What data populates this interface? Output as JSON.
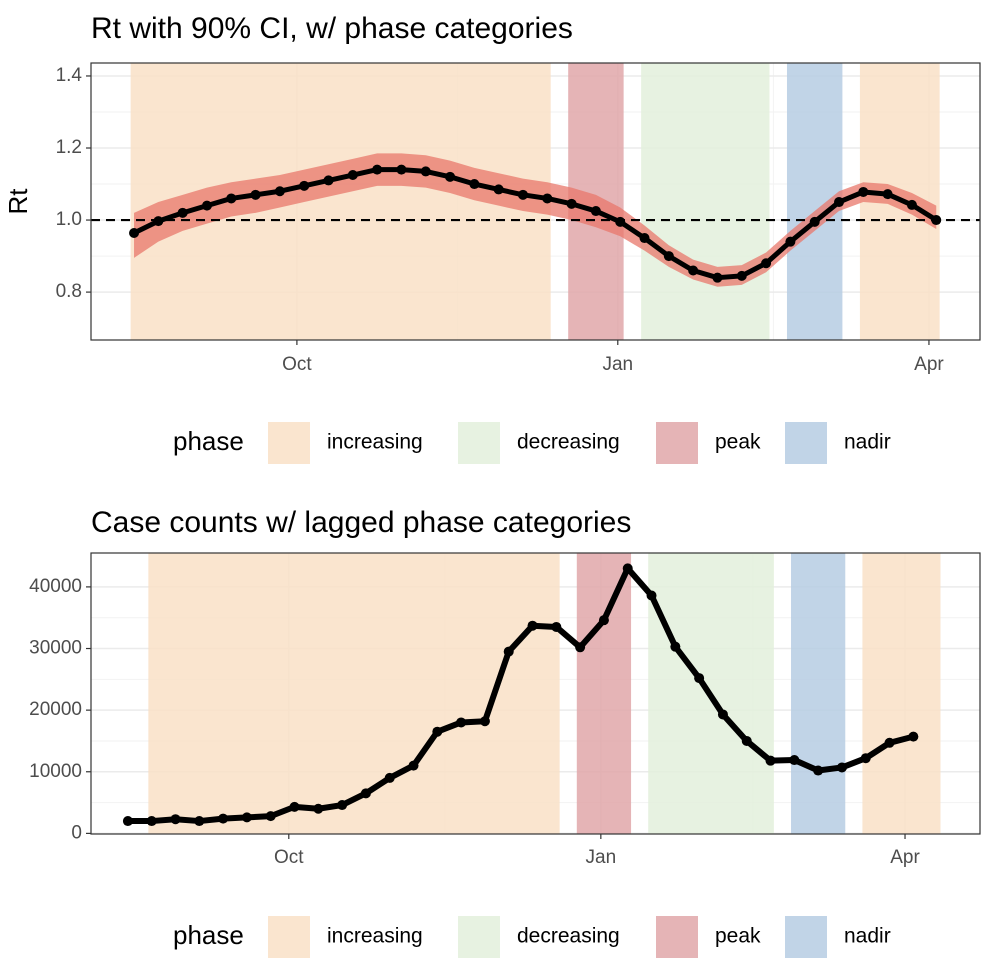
{
  "chart_data": [
    {
      "type": "line",
      "title": "Rt with 90% CI, w/ phase categories",
      "y_label": "Rt",
      "x": [
        0,
        1,
        2,
        3,
        4,
        5,
        6,
        7,
        8,
        9,
        10,
        11,
        12,
        13,
        14,
        15,
        16,
        17,
        18,
        19,
        20,
        21,
        22,
        23,
        24,
        25,
        26,
        27,
        28,
        29,
        30,
        31,
        32,
        33
      ],
      "values": [
        0.964,
        0.997,
        1.02,
        1.04,
        1.06,
        1.07,
        1.08,
        1.095,
        1.11,
        1.125,
        1.14,
        1.14,
        1.135,
        1.12,
        1.1,
        1.085,
        1.07,
        1.06,
        1.045,
        1.025,
        0.995,
        0.95,
        0.9,
        0.86,
        0.84,
        0.845,
        0.88,
        0.94,
        0.995,
        1.05,
        1.078,
        1.072,
        1.042,
        1.0
      ],
      "ci_lower": [
        0.895,
        0.94,
        0.97,
        0.99,
        1.01,
        1.02,
        1.035,
        1.05,
        1.065,
        1.08,
        1.095,
        1.095,
        1.09,
        1.075,
        1.055,
        1.04,
        1.025,
        1.015,
        1.0,
        0.98,
        0.955,
        0.915,
        0.87,
        0.835,
        0.815,
        0.82,
        0.855,
        0.915,
        0.97,
        1.025,
        1.05,
        1.045,
        1.015,
        0.975
      ],
      "ci_upper": [
        1.02,
        1.05,
        1.07,
        1.09,
        1.105,
        1.115,
        1.125,
        1.14,
        1.155,
        1.17,
        1.185,
        1.185,
        1.18,
        1.165,
        1.145,
        1.13,
        1.115,
        1.105,
        1.09,
        1.07,
        1.035,
        0.985,
        0.93,
        0.89,
        0.87,
        0.875,
        0.91,
        0.97,
        1.025,
        1.08,
        1.105,
        1.1,
        1.075,
        1.04
      ],
      "color": "#000000",
      "ci_color": "#e8776b",
      "hline": 1,
      "phases": [
        {
          "start": 0,
          "end": 17,
          "color": "#f9e1c7"
        },
        {
          "start": 18,
          "end": 20,
          "color": "#e0a7a9"
        },
        {
          "start": 21,
          "end": 26,
          "color": "#e3f0dc"
        },
        {
          "start": 27,
          "end": 29,
          "color": "#b6cde3"
        },
        {
          "start": 30,
          "end": 33,
          "color": "#f9e1c7"
        }
      ],
      "legend": {
        "title": "phase",
        "items": [
          {
            "label": "increasing",
            "color": "#f9e1c7"
          },
          {
            "label": "decreasing",
            "color": "#e3f0dc"
          },
          {
            "label": "peak",
            "color": "#e0a7a9"
          },
          {
            "label": "nadir",
            "color": "#b6cde3"
          }
        ]
      },
      "xlim": [
        -1.77,
        34.8
      ],
      "xticks": [
        {
          "value": 6.7,
          "label": "Oct"
        },
        {
          "value": 19.9,
          "label": "Jan"
        },
        {
          "value": 32.7,
          "label": "Apr"
        }
      ],
      "ylim": [
        0.667,
        1.436
      ],
      "yticks": [
        0.8,
        {
          "value": 1,
          "label": "1.0"
        },
        1.2,
        1.4
      ],
      "grid": true
    },
    {
      "type": "line",
      "title": "Case counts w/ lagged phase categories",
      "x": [
        0,
        1,
        2,
        3,
        4,
        5,
        6,
        7,
        8,
        9,
        10,
        11,
        12,
        13,
        14,
        15,
        16,
        17,
        18,
        19,
        20,
        21,
        22,
        23,
        24,
        25,
        26,
        27,
        28,
        29,
        30,
        31,
        32,
        33
      ],
      "values": [
        2000,
        2000,
        2300,
        2000,
        2400,
        2600,
        2800,
        4300,
        4000,
        4600,
        6500,
        9000,
        11000,
        16500,
        18000,
        18200,
        29500,
        33700,
        33500,
        30200,
        34600,
        43000,
        38600,
        30300,
        25200,
        19300,
        15000,
        11800,
        11900,
        10200,
        10700,
        12200,
        14700,
        15700
      ],
      "color": "#000000",
      "phases": [
        {
          "start": 1,
          "end": 18,
          "color": "#f9e1c7"
        },
        {
          "start": 19,
          "end": 21,
          "color": "#e0a7a9"
        },
        {
          "start": 22,
          "end": 27,
          "color": "#e3f0dc"
        },
        {
          "start": 28,
          "end": 30,
          "color": "#b6cde3"
        },
        {
          "start": 31,
          "end": 34,
          "color": "#f9e1c7"
        }
      ],
      "legend": {
        "title": "phase",
        "items": [
          {
            "label": "increasing",
            "color": "#f9e1c7"
          },
          {
            "label": "decreasing",
            "color": "#e3f0dc"
          },
          {
            "label": "peak",
            "color": "#e0a7a9"
          },
          {
            "label": "nadir",
            "color": "#b6cde3"
          }
        ]
      },
      "xlim": [
        -1.55,
        35.8
      ],
      "xticks": [
        {
          "value": 6.76,
          "label": "Oct"
        },
        {
          "value": 19.87,
          "label": "Jan"
        },
        {
          "value": 32.65,
          "label": "Apr"
        }
      ],
      "ylim": [
        -100,
        45500
      ],
      "yticks": [
        0,
        10000,
        20000,
        30000,
        40000
      ],
      "grid": true
    }
  ]
}
